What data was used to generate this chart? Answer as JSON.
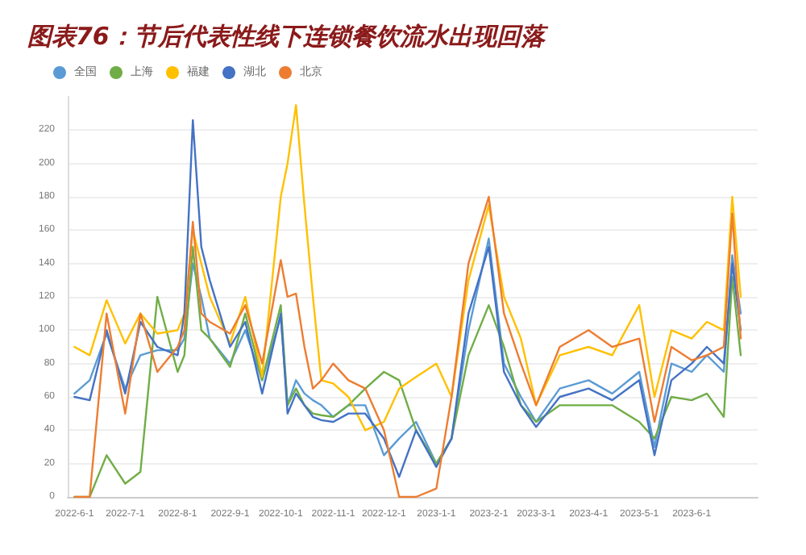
{
  "chart_data": {
    "type": "line",
    "title": "图表76：节后代表性线下连锁餐饮流水出现回落",
    "x": [
      "2022-06-01",
      "2022-06-10",
      "2022-06-20",
      "2022-07-01",
      "2022-07-10",
      "2022-07-20",
      "2022-08-01",
      "2022-08-05",
      "2022-08-10",
      "2022-08-15",
      "2022-08-20",
      "2022-09-01",
      "2022-09-10",
      "2022-09-20",
      "2022-10-01",
      "2022-10-05",
      "2022-10-10",
      "2022-10-15",
      "2022-10-20",
      "2022-10-25",
      "2022-11-01",
      "2022-11-10",
      "2022-11-20",
      "2022-12-01",
      "2022-12-10",
      "2022-12-20",
      "2023-01-01",
      "2023-01-10",
      "2023-01-20",
      "2023-02-01",
      "2023-02-10",
      "2023-02-20",
      "2023-03-01",
      "2023-03-15",
      "2023-04-01",
      "2023-04-15",
      "2023-05-01",
      "2023-05-10",
      "2023-05-20",
      "2023-06-01",
      "2023-06-10",
      "2023-06-20",
      "2023-06-25",
      "2023-06-30"
    ],
    "series": [
      {
        "name": "全国",
        "color": "#5b9bd5",
        "values": [
          62,
          70,
          98,
          65,
          85,
          88,
          88,
          95,
          140,
          120,
          95,
          80,
          100,
          70,
          108,
          55,
          70,
          62,
          58,
          55,
          48,
          55,
          55,
          25,
          35,
          45,
          20,
          35,
          100,
          155,
          80,
          60,
          45,
          65,
          70,
          62,
          75,
          30,
          80,
          75,
          85,
          75,
          145,
          110
        ]
      },
      {
        "name": "上海",
        "color": "#70ad47",
        "values": [
          0,
          0,
          25,
          8,
          15,
          120,
          75,
          85,
          150,
          100,
          95,
          78,
          110,
          70,
          115,
          55,
          65,
          55,
          50,
          49,
          48,
          55,
          65,
          75,
          70,
          40,
          20,
          35,
          85,
          115,
          90,
          55,
          45,
          55,
          55,
          55,
          45,
          35,
          60,
          58,
          62,
          48,
          132,
          85
        ]
      },
      {
        "name": "福建",
        "color": "#ffc000",
        "values": [
          90,
          85,
          118,
          92,
          110,
          98,
          100,
          110,
          160,
          140,
          120,
          92,
          120,
          72,
          180,
          200,
          235,
          175,
          120,
          70,
          68,
          60,
          40,
          45,
          65,
          72,
          80,
          60,
          130,
          175,
          120,
          95,
          55,
          85,
          90,
          85,
          115,
          60,
          100,
          95,
          105,
          100,
          180,
          120
        ]
      },
      {
        "name": "湖北",
        "color": "#4472c4",
        "values": [
          60,
          58,
          100,
          62,
          105,
          90,
          85,
          110,
          226,
          150,
          130,
          90,
          105,
          62,
          110,
          50,
          62,
          55,
          48,
          46,
          45,
          50,
          50,
          35,
          12,
          40,
          18,
          35,
          110,
          150,
          75,
          55,
          42,
          60,
          65,
          58,
          70,
          25,
          70,
          80,
          90,
          80,
          140,
          100
        ]
      },
      {
        "name": "北京",
        "color": "#ed7d31",
        "values": [
          0,
          0,
          110,
          50,
          110,
          75,
          90,
          100,
          165,
          110,
          105,
          98,
          115,
          80,
          142,
          120,
          122,
          90,
          65,
          70,
          80,
          70,
          65,
          40,
          0,
          0,
          5,
          60,
          140,
          180,
          110,
          80,
          55,
          90,
          100,
          90,
          95,
          45,
          90,
          82,
          85,
          90,
          170,
          95
        ]
      }
    ],
    "xlim": [
      "2022-05-28",
      "2023-07-10"
    ],
    "xticks": [
      {
        "value": "2022-06-01",
        "label": "2022-6-1"
      },
      {
        "value": "2022-07-01",
        "label": "2022-7-1"
      },
      {
        "value": "2022-08-01",
        "label": "2022-8-1"
      },
      {
        "value": "2022-09-01",
        "label": "2022-9-1"
      },
      {
        "value": "2022-10-01",
        "label": "2022-10-1"
      },
      {
        "value": "2022-11-01",
        "label": "2022-11-1"
      },
      {
        "value": "2022-12-01",
        "label": "2022-12-1"
      },
      {
        "value": "2023-01-01",
        "label": "2023-1-1"
      },
      {
        "value": "2023-02-01",
        "label": "2023-2-1"
      },
      {
        "value": "2023-03-01",
        "label": "2023-3-1"
      },
      {
        "value": "2023-04-01",
        "label": "2023-4-1"
      },
      {
        "value": "2023-05-01",
        "label": "2023-5-1"
      },
      {
        "value": "2023-06-01",
        "label": "2023-6-1"
      }
    ],
    "ylim": [
      0,
      240
    ],
    "yticks": [
      0,
      20,
      40,
      60,
      80,
      100,
      120,
      140,
      160,
      180,
      200,
      220
    ],
    "grid": "y",
    "legend": "top left",
    "marker": "none",
    "line_style": "solid"
  }
}
